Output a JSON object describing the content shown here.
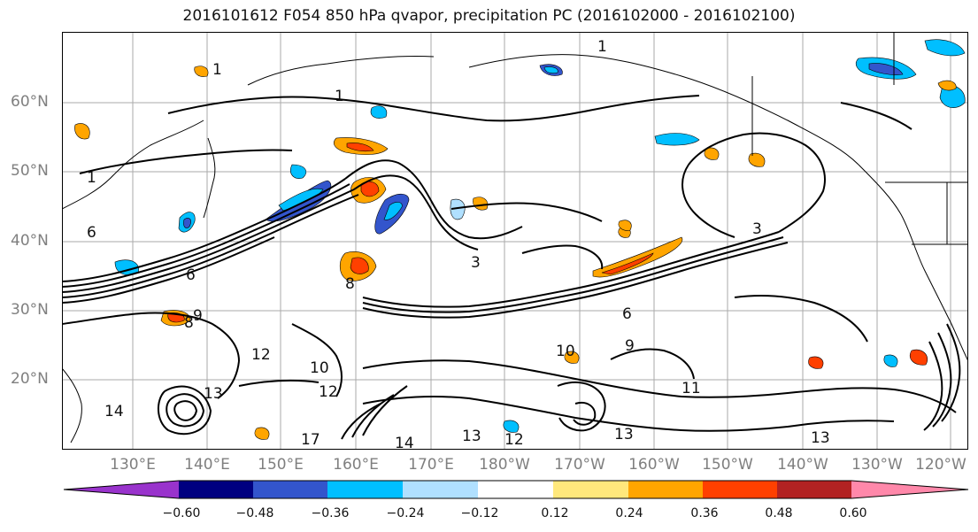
{
  "title": "2016101612 F054 850 hPa qvapor, precipitation PC (2016102000 - 2016102100)",
  "map": {
    "lat_labels": [
      "60°N",
      "50°N",
      "40°N",
      "30°N",
      "20°N"
    ],
    "lon_labels": [
      "130°E",
      "140°E",
      "150°E",
      "160°E",
      "170°E",
      "180°W",
      "170°W",
      "160°W",
      "150°W",
      "140°W",
      "130°W",
      "120°W"
    ],
    "contour_labels": [
      "1",
      "1",
      "1",
      "1",
      "3",
      "3",
      "6",
      "6",
      "6",
      "8",
      "8",
      "9",
      "9",
      "10",
      "10",
      "11",
      "12",
      "12",
      "12",
      "13",
      "13",
      "13",
      "13",
      "14",
      "14",
      "17"
    ]
  },
  "colorbar": {
    "colors": [
      "#9933cc",
      "#000080",
      "#3355cc",
      "#00bfff",
      "#b0e0ff",
      "#ffffff",
      "#ffe87c",
      "#ffa500",
      "#ff4000",
      "#b22222",
      "#ff88aa"
    ],
    "tick_labels": [
      "−0.60",
      "−0.48",
      "−0.36",
      "−0.24",
      "−0.12",
      "0.12",
      "0.24",
      "0.36",
      "0.48",
      "0.60"
    ]
  }
}
